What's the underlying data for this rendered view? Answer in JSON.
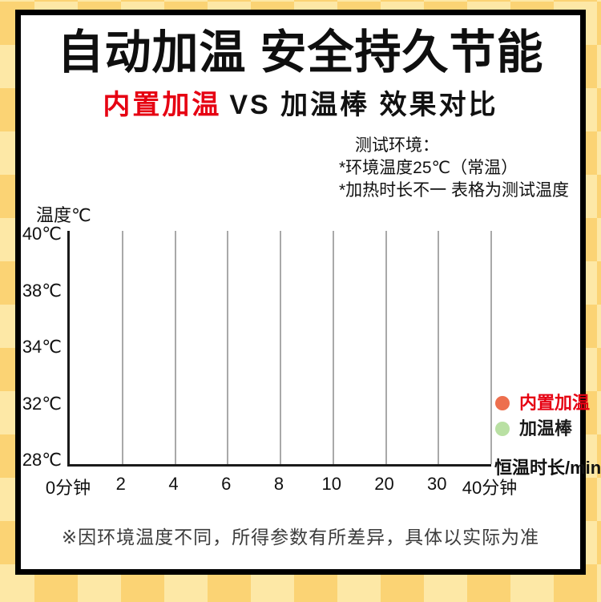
{
  "page": {
    "title": "自动加温 安全持久节能",
    "subtitle_highlight": "内置加温",
    "subtitle_rest": "VS 加温棒 效果对比",
    "footer_note": "※因环境温度不同，所得参数有所差异，具体以实际为准"
  },
  "test_env": {
    "heading": "测试环境：",
    "lines": [
      "*环境温度25℃（常温）",
      "*加热时长不一 表格为测试温度"
    ]
  },
  "chart_data": {
    "type": "line",
    "title": "内置加温 VS 加温棒 效果对比",
    "ylabel": "温度℃",
    "xlabel": "恒温时长/min",
    "y_tick_labels": [
      "40℃",
      "38℃",
      "34℃",
      "32℃",
      "28℃"
    ],
    "y_tick_values": [
      40,
      38,
      34,
      32,
      28
    ],
    "x_tick_labels": [
      "0分钟",
      "2",
      "4",
      "6",
      "8",
      "10",
      "20",
      "30",
      "40分钟"
    ],
    "x_tick_values_min": [
      0,
      2,
      4,
      6,
      8,
      10,
      20,
      30,
      40
    ],
    "grid": "vertical gridlines only, gray",
    "legend_position": "right",
    "series": [
      {
        "name": "内置加温",
        "marker_color": "#ed6f4e",
        "label_color": "#e60012",
        "values": []
      },
      {
        "name": "加温棒",
        "marker_color": "#b9e0a3",
        "label_color": "#1a1a1a",
        "values": []
      }
    ]
  },
  "colors": {
    "checker_light": "#fde8a6",
    "checker_dark": "#fbd374",
    "panel_border": "#000000",
    "panel_bg": "#ffffff",
    "accent_red": "#e60012",
    "gridline": "#a9a9a9",
    "axis": "#1a1a1a",
    "footer_text": "#3d3d3d"
  }
}
